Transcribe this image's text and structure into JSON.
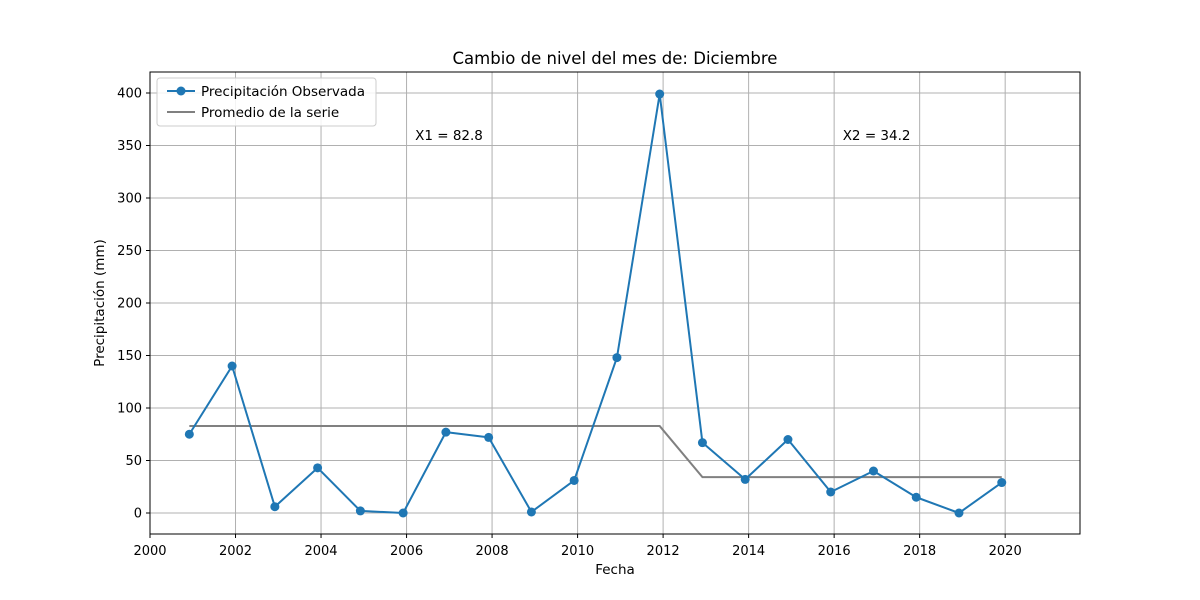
{
  "chart_data": {
    "type": "line",
    "title": "Cambio de nivel del mes de: Diciembre",
    "xlabel": "Fecha",
    "ylabel": "Precipitación (mm)",
    "xlim": [
      2000,
      2021.75
    ],
    "ylim": [
      -20,
      420
    ],
    "xticks": [
      2000,
      2002,
      2004,
      2006,
      2008,
      2010,
      2012,
      2014,
      2016,
      2018,
      2020
    ],
    "yticks": [
      0,
      50,
      100,
      150,
      200,
      250,
      300,
      350,
      400
    ],
    "grid": true,
    "legend_position": "top-left",
    "series": [
      {
        "name": "Precipitación Observada",
        "color": "#1f77b4",
        "marker": "circle",
        "x": [
          2000.92,
          2001.92,
          2002.92,
          2003.92,
          2004.92,
          2005.92,
          2006.92,
          2007.92,
          2008.92,
          2009.92,
          2010.92,
          2011.92,
          2012.92,
          2013.92,
          2014.92,
          2015.92,
          2016.92,
          2017.92,
          2018.92,
          2019.92
        ],
        "y": [
          75,
          140,
          6,
          43,
          2,
          0,
          77,
          72,
          1,
          31,
          148,
          399,
          67,
          32,
          70,
          20,
          40,
          15,
          0,
          29
        ]
      },
      {
        "name": "Promedio de la serie",
        "color": "#808080",
        "marker": "none",
        "x": [
          2000.92,
          2011.92,
          2012.92,
          2019.92
        ],
        "y": [
          82.8,
          82.8,
          34.2,
          34.2
        ]
      }
    ],
    "annotations": [
      {
        "text": "X1 = 82.8",
        "x": 2006.2,
        "y": 360
      },
      {
        "text": "X2 = 34.2",
        "x": 2016.2,
        "y": 360
      }
    ]
  }
}
